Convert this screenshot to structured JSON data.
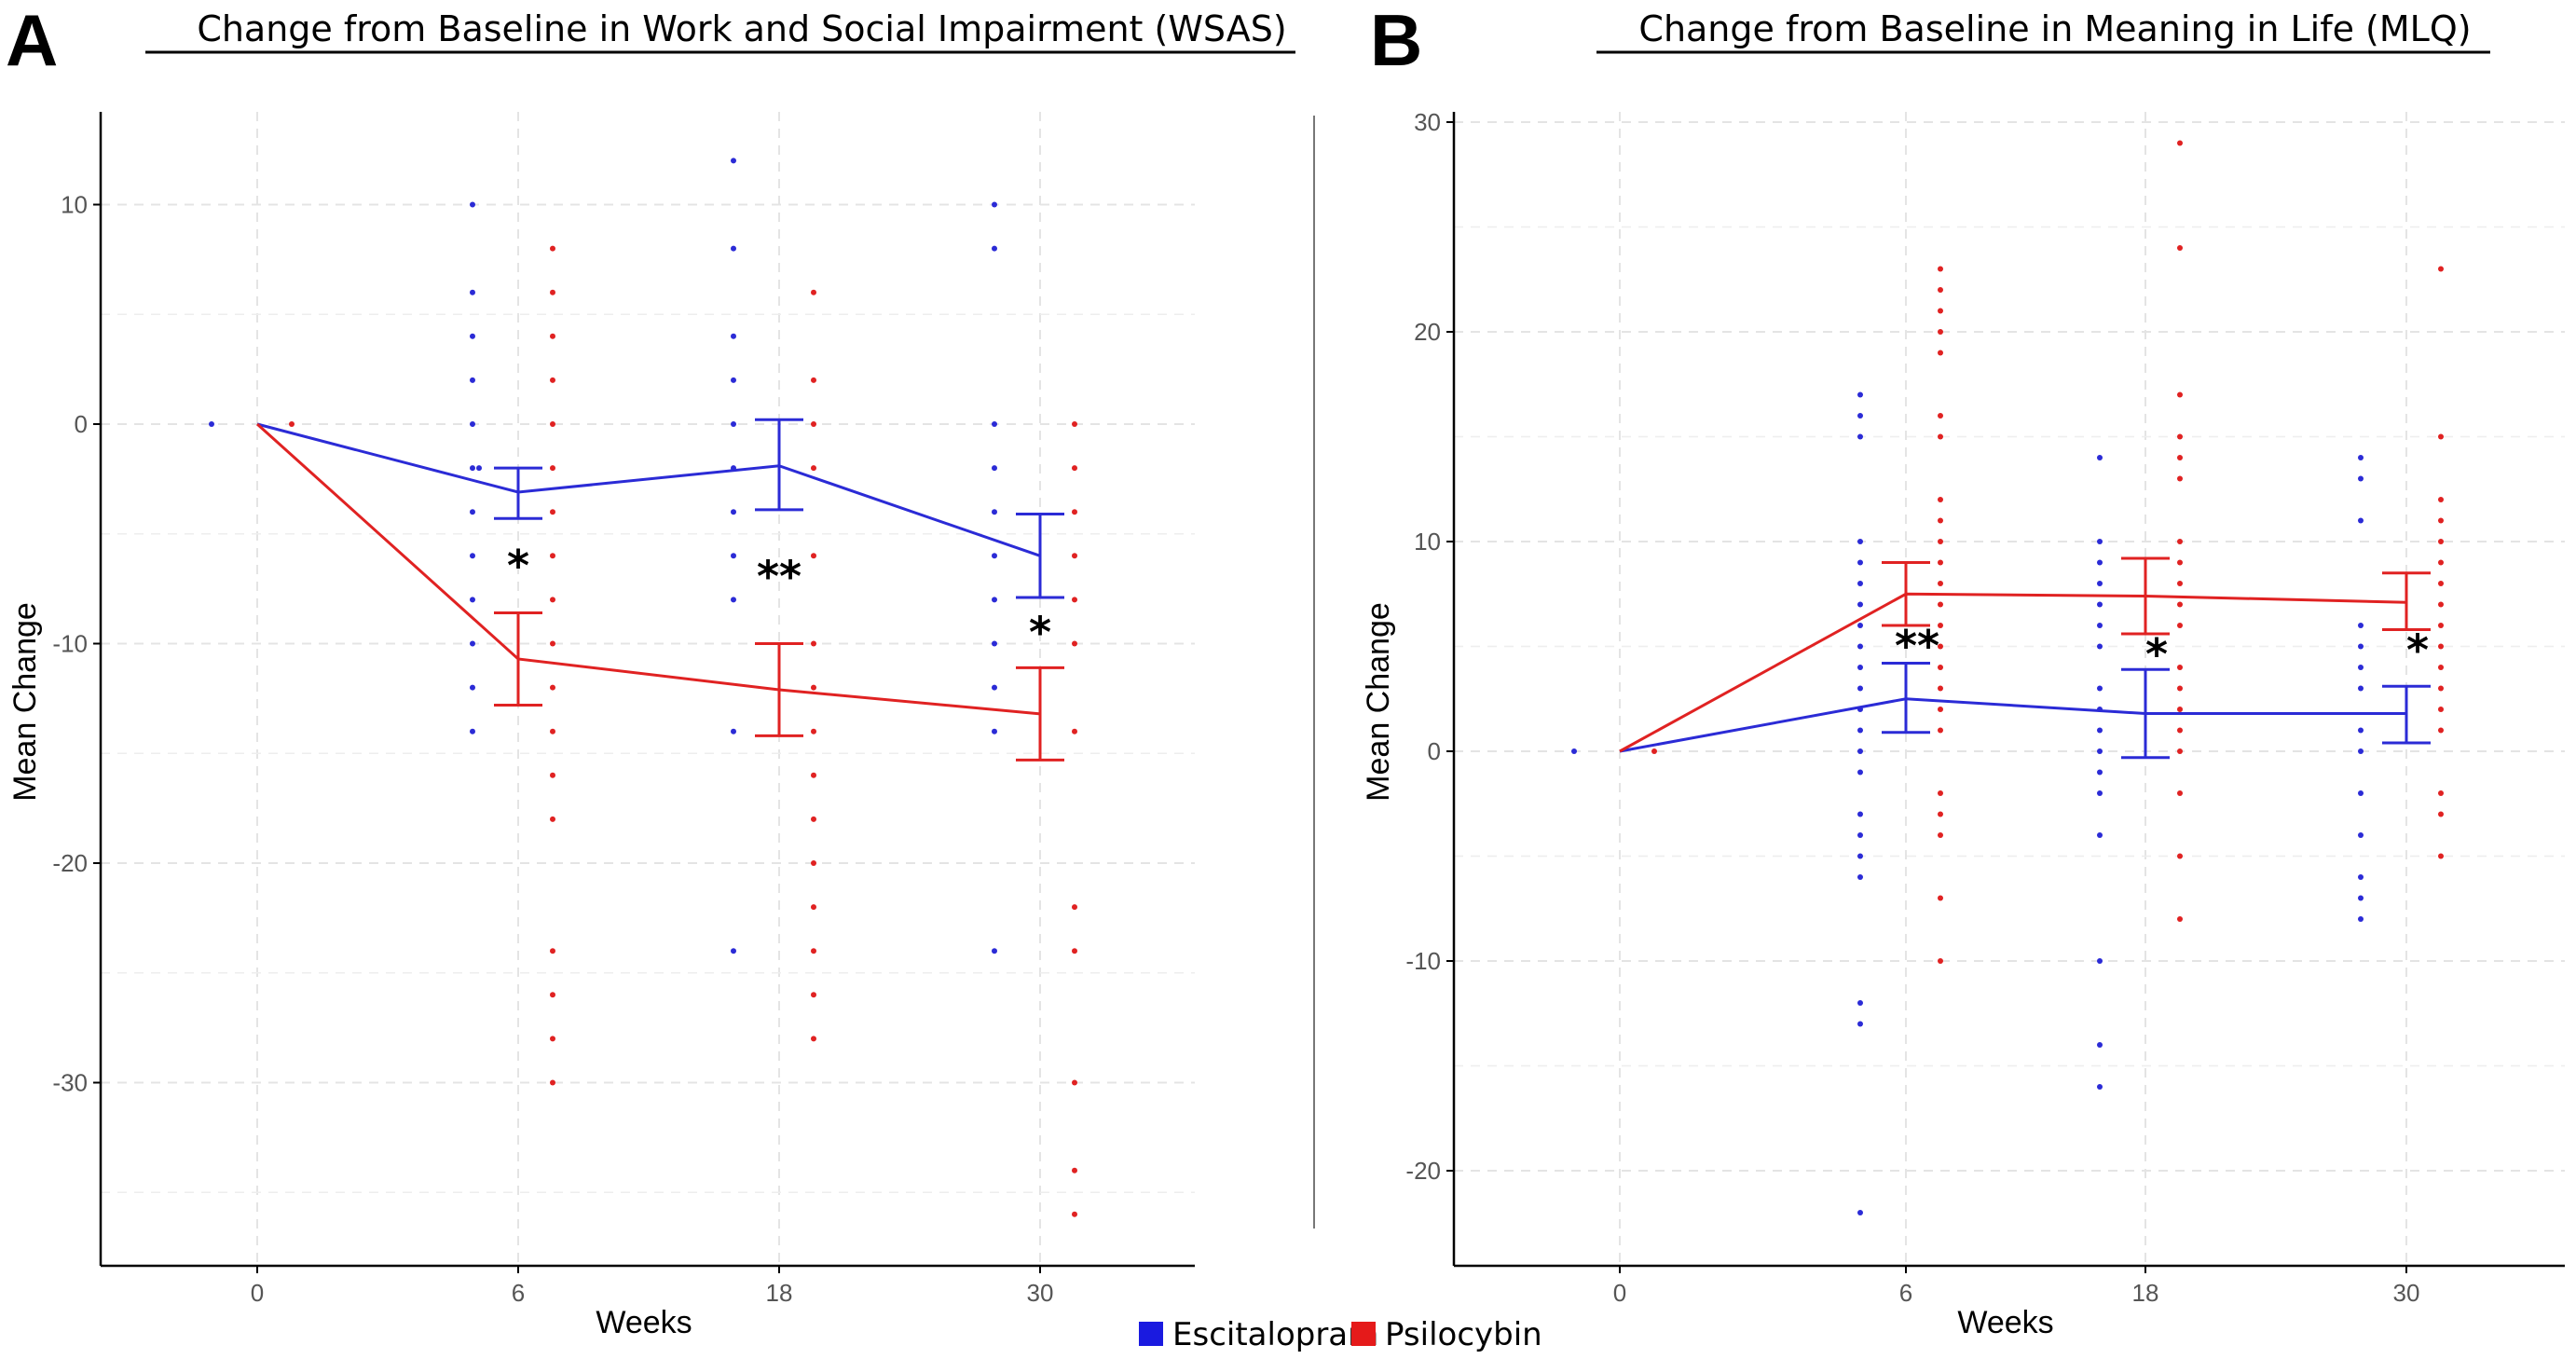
{
  "colors": {
    "escitalopram": "#2b2bd6",
    "psilocybin": "#e02222",
    "grid": "#e4e4e4"
  },
  "legend": [
    {
      "label": "Escitalopram",
      "color": "#1a1ae0"
    },
    {
      "label": "Psilocybin",
      "color": "#e51a1a"
    }
  ],
  "chart_data": [
    {
      "panel": "A",
      "type": "line",
      "title": "Change from Baseline in Work and Social Impairment (WSAS)",
      "xlabel": "Weeks",
      "ylabel": "Mean Change",
      "categories": [
        "0",
        "6",
        "18",
        "30"
      ],
      "yticks": [
        10,
        0,
        -10,
        -20,
        -30
      ],
      "ylim": [
        -38.5,
        14
      ],
      "series": [
        {
          "name": "Escitalopram",
          "values": [
            0,
            -3.1,
            -1.9,
            -6.0
          ],
          "ci_low": [
            null,
            -4.3,
            -3.9,
            -7.9
          ],
          "ci_high": [
            null,
            -2.0,
            0.2,
            -4.1
          ]
        },
        {
          "name": "Psilocybin",
          "values": [
            0,
            -10.7,
            -12.1,
            -13.2
          ],
          "ci_low": [
            null,
            -12.8,
            -14.2,
            -15.3
          ],
          "ci_high": [
            null,
            -8.6,
            -10.0,
            -11.1
          ]
        }
      ],
      "points": {
        "Escitalopram": [
          [
            0,
            0
          ],
          [
            6,
            10
          ],
          [
            6,
            6
          ],
          [
            6,
            4
          ],
          [
            6,
            2
          ],
          [
            6,
            0
          ],
          [
            6,
            -2
          ],
          [
            6,
            -2
          ],
          [
            6,
            -4
          ],
          [
            6,
            -6
          ],
          [
            6,
            -8
          ],
          [
            6,
            -10
          ],
          [
            6,
            -12
          ],
          [
            6,
            -14
          ],
          [
            18,
            12
          ],
          [
            18,
            8
          ],
          [
            18,
            4
          ],
          [
            18,
            2
          ],
          [
            18,
            0
          ],
          [
            18,
            -2
          ],
          [
            18,
            -4
          ],
          [
            18,
            -6
          ],
          [
            18,
            -8
          ],
          [
            18,
            -14
          ],
          [
            18,
            -24
          ],
          [
            30,
            10
          ],
          [
            30,
            8
          ],
          [
            30,
            0
          ],
          [
            30,
            -2
          ],
          [
            30,
            -4
          ],
          [
            30,
            -6
          ],
          [
            30,
            -8
          ],
          [
            30,
            -10
          ],
          [
            30,
            -12
          ],
          [
            30,
            -14
          ],
          [
            30,
            -24
          ]
        ],
        "Psilocybin": [
          [
            0,
            0
          ],
          [
            6,
            8
          ],
          [
            6,
            6
          ],
          [
            6,
            4
          ],
          [
            6,
            2
          ],
          [
            6,
            0
          ],
          [
            6,
            -2
          ],
          [
            6,
            -4
          ],
          [
            6,
            -6
          ],
          [
            6,
            -8
          ],
          [
            6,
            -10
          ],
          [
            6,
            -12
          ],
          [
            6,
            -14
          ],
          [
            6,
            -16
          ],
          [
            6,
            -18
          ],
          [
            6,
            -24
          ],
          [
            6,
            -26
          ],
          [
            6,
            -28
          ],
          [
            6,
            -30
          ],
          [
            18,
            6
          ],
          [
            18,
            2
          ],
          [
            18,
            0
          ],
          [
            18,
            -2
          ],
          [
            18,
            -6
          ],
          [
            18,
            -10
          ],
          [
            18,
            -12
          ],
          [
            18,
            -14
          ],
          [
            18,
            -16
          ],
          [
            18,
            -18
          ],
          [
            18,
            -20
          ],
          [
            18,
            -22
          ],
          [
            18,
            -24
          ],
          [
            18,
            -26
          ],
          [
            18,
            -28
          ],
          [
            30,
            0
          ],
          [
            30,
            -2
          ],
          [
            30,
            -4
          ],
          [
            30,
            -6
          ],
          [
            30,
            -8
          ],
          [
            30,
            -10
          ],
          [
            30,
            -14
          ],
          [
            30,
            -22
          ],
          [
            30,
            -24
          ],
          [
            30,
            -30
          ],
          [
            30,
            -34
          ],
          [
            30,
            -36
          ]
        ]
      },
      "significance": [
        "*",
        "**",
        "*"
      ]
    },
    {
      "panel": "B",
      "type": "line",
      "title": "Change from Baseline in Meaning in Life (MLQ)",
      "xlabel": "Weeks",
      "ylabel": "Mean Change",
      "categories": [
        "0",
        "6",
        "18",
        "30"
      ],
      "yticks": [
        30,
        20,
        10,
        0,
        -10,
        -20
      ],
      "ylim": [
        -24.5,
        30.5
      ],
      "series": [
        {
          "name": "Escitalopram",
          "values": [
            0,
            2.5,
            1.8,
            1.8
          ],
          "ci_low": [
            null,
            0.9,
            -0.3,
            0.4
          ],
          "ci_high": [
            null,
            4.2,
            3.9,
            3.1
          ]
        },
        {
          "name": "Psilocybin",
          "values": [
            0,
            7.5,
            7.4,
            7.1
          ],
          "ci_low": [
            null,
            6.0,
            5.6,
            5.8
          ],
          "ci_high": [
            null,
            9.0,
            9.2,
            8.5
          ]
        }
      ],
      "points": {
        "Escitalopram": [
          [
            0,
            0
          ],
          [
            6,
            17
          ],
          [
            6,
            16
          ],
          [
            6,
            15
          ],
          [
            6,
            10
          ],
          [
            6,
            9
          ],
          [
            6,
            8
          ],
          [
            6,
            7
          ],
          [
            6,
            6
          ],
          [
            6,
            5
          ],
          [
            6,
            4
          ],
          [
            6,
            3
          ],
          [
            6,
            2
          ],
          [
            6,
            1
          ],
          [
            6,
            0
          ],
          [
            6,
            -1
          ],
          [
            6,
            -3
          ],
          [
            6,
            -4
          ],
          [
            6,
            -5
          ],
          [
            6,
            -6
          ],
          [
            6,
            -12
          ],
          [
            6,
            -13
          ],
          [
            6,
            -22
          ],
          [
            18,
            14
          ],
          [
            18,
            10
          ],
          [
            18,
            9
          ],
          [
            18,
            8
          ],
          [
            18,
            7
          ],
          [
            18,
            6
          ],
          [
            18,
            5
          ],
          [
            18,
            3
          ],
          [
            18,
            2
          ],
          [
            18,
            1
          ],
          [
            18,
            0
          ],
          [
            18,
            -1
          ],
          [
            18,
            -2
          ],
          [
            18,
            -4
          ],
          [
            18,
            -10
          ],
          [
            18,
            -14
          ],
          [
            18,
            -16
          ],
          [
            30,
            14
          ],
          [
            30,
            13
          ],
          [
            30,
            11
          ],
          [
            30,
            6
          ],
          [
            30,
            5
          ],
          [
            30,
            4
          ],
          [
            30,
            3
          ],
          [
            30,
            1
          ],
          [
            30,
            0
          ],
          [
            30,
            -2
          ],
          [
            30,
            -4
          ],
          [
            30,
            -6
          ],
          [
            30,
            -7
          ],
          [
            30,
            -8
          ]
        ],
        "Psilocybin": [
          [
            0,
            0
          ],
          [
            6,
            23
          ],
          [
            6,
            22
          ],
          [
            6,
            21
          ],
          [
            6,
            20
          ],
          [
            6,
            19
          ],
          [
            6,
            16
          ],
          [
            6,
            15
          ],
          [
            6,
            12
          ],
          [
            6,
            11
          ],
          [
            6,
            10
          ],
          [
            6,
            9
          ],
          [
            6,
            8
          ],
          [
            6,
            7
          ],
          [
            6,
            6
          ],
          [
            6,
            5
          ],
          [
            6,
            4
          ],
          [
            6,
            3
          ],
          [
            6,
            2
          ],
          [
            6,
            1
          ],
          [
            6,
            -2
          ],
          [
            6,
            -3
          ],
          [
            6,
            -4
          ],
          [
            6,
            -7
          ],
          [
            6,
            -10
          ],
          [
            18,
            29
          ],
          [
            18,
            24
          ],
          [
            18,
            17
          ],
          [
            18,
            15
          ],
          [
            18,
            14
          ],
          [
            18,
            13
          ],
          [
            18,
            10
          ],
          [
            18,
            9
          ],
          [
            18,
            8
          ],
          [
            18,
            7
          ],
          [
            18,
            6
          ],
          [
            18,
            4
          ],
          [
            18,
            3
          ],
          [
            18,
            2
          ],
          [
            18,
            1
          ],
          [
            18,
            0
          ],
          [
            18,
            -2
          ],
          [
            18,
            -5
          ],
          [
            18,
            -8
          ],
          [
            30,
            23
          ],
          [
            30,
            15
          ],
          [
            30,
            12
          ],
          [
            30,
            11
          ],
          [
            30,
            10
          ],
          [
            30,
            9
          ],
          [
            30,
            8
          ],
          [
            30,
            7
          ],
          [
            30,
            6
          ],
          [
            30,
            5
          ],
          [
            30,
            4
          ],
          [
            30,
            3
          ],
          [
            30,
            2
          ],
          [
            30,
            1
          ],
          [
            30,
            -2
          ],
          [
            30,
            -3
          ],
          [
            30,
            -5
          ]
        ]
      },
      "significance": [
        "**",
        "*",
        "*"
      ]
    }
  ]
}
